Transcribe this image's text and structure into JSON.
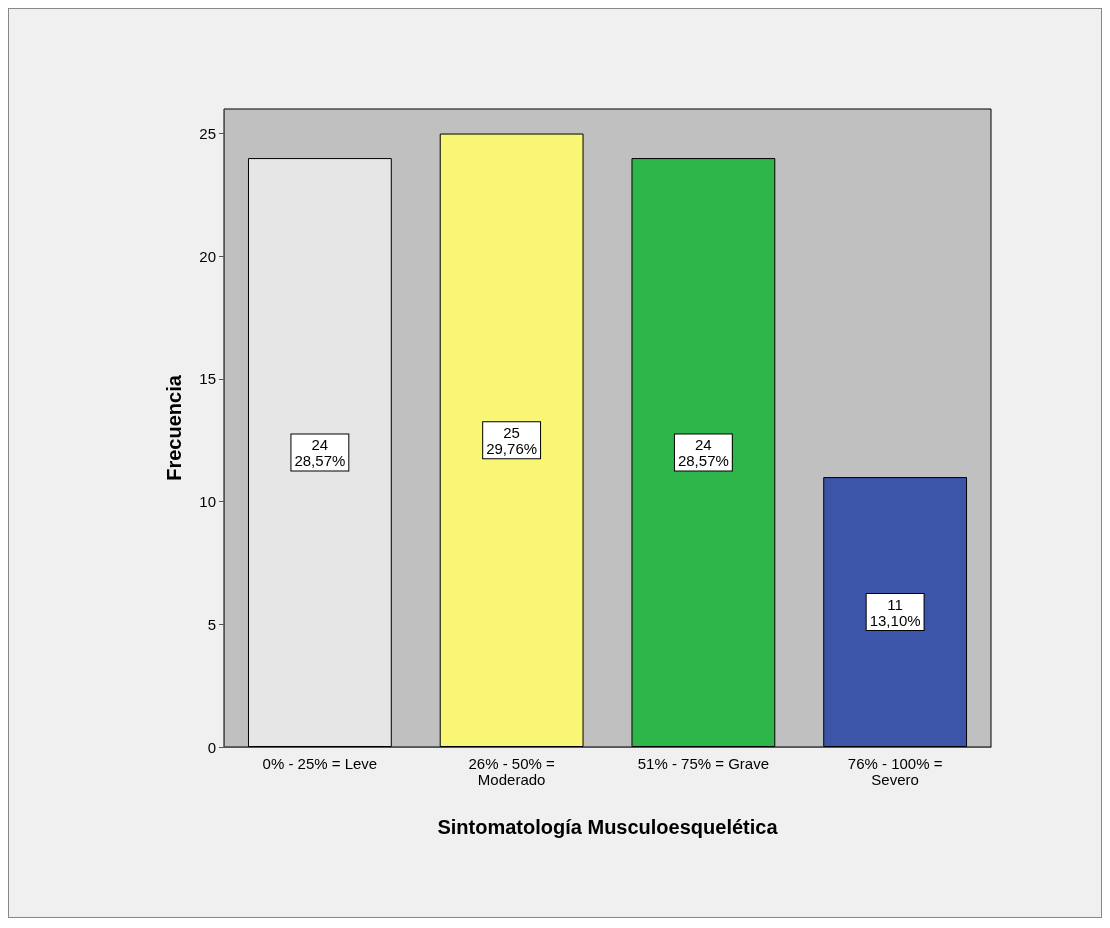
{
  "chart_data": {
    "type": "bar",
    "xlabel": "Sintomatología Musculoesquelética",
    "ylabel": "Frecuencia",
    "categories": [
      "0% - 25% = Leve",
      "26% - 50% =\nModerado",
      "51% - 75% = Grave",
      "76% - 100% =\nSevero"
    ],
    "values": [
      24,
      25,
      24,
      11
    ],
    "colors": [
      "#e6e6e6",
      "#f9f676",
      "#2fb64a",
      "#3d55a8"
    ],
    "value_labels": [
      "24\n28,57%",
      "25\n29,76%",
      "24\n28,57%",
      "11\n13,10%"
    ],
    "ylim": [
      0,
      26
    ],
    "yticks": [
      0,
      5,
      10,
      15,
      20,
      25
    ]
  }
}
